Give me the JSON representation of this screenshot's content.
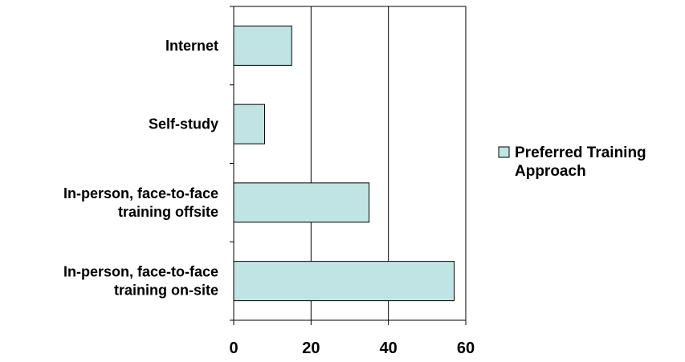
{
  "chart_data": {
    "type": "bar",
    "orientation": "horizontal",
    "categories": [
      [
        "Internet"
      ],
      [
        "Self-study"
      ],
      [
        "In-person, face-to-face",
        "training offsite"
      ],
      [
        "In-person, face-to-face",
        "training on-site"
      ]
    ],
    "series": [
      {
        "name": [
          "Preferred Training",
          "Approach"
        ],
        "values": [
          15,
          8,
          35,
          57
        ],
        "color": "#c0e4e4"
      }
    ],
    "xticks": [
      "0",
      "20",
      "40",
      "60"
    ],
    "xlim": [
      0,
      60
    ],
    "grid": true,
    "legend": "right"
  }
}
